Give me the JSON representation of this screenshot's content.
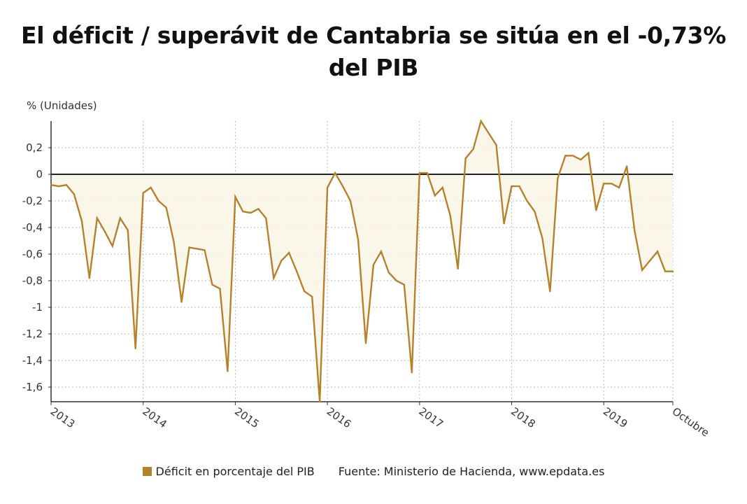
{
  "chart_data": {
    "type": "area",
    "title": "El déficit / superávit de Cantabria se sitúa en el -0,73% del PIB",
    "ylabel": "% (Unidades)",
    "xlabel": "",
    "ylim": [
      -1.71,
      0.4
    ],
    "yticks": [
      0.2,
      0,
      -0.2,
      -0.4,
      -0.6,
      -0.8,
      -1,
      -1.2,
      -1.4,
      -1.6
    ],
    "ytick_labels": [
      "0,2",
      "0",
      "-0,2",
      "-0,4",
      "-0,6",
      "-0,8",
      "-1",
      "-1,2",
      "-1,4",
      "-1,6"
    ],
    "xtick_labels": [
      "2013",
      "2014",
      "2015",
      "2016",
      "2017",
      "2018",
      "2019",
      "Octubre"
    ],
    "x_start": "2013-01",
    "x_end": "2019-10",
    "frequency": "monthly",
    "grid": true,
    "legend_position": "bottom",
    "series": [
      {
        "name": "Déficit en porcentaje del PIB",
        "color": "#b5822c",
        "values": [
          -0.08,
          -0.09,
          -0.08,
          -0.15,
          -0.35,
          -0.78,
          -0.33,
          -0.43,
          -0.54,
          -0.33,
          -0.42,
          -1.31,
          -0.14,
          -0.1,
          -0.2,
          -0.25,
          -0.51,
          -0.96,
          -0.55,
          -0.56,
          -0.57,
          -0.83,
          -0.86,
          -1.48,
          -0.17,
          -0.28,
          -0.29,
          -0.26,
          -0.33,
          -0.78,
          -0.65,
          -0.59,
          -0.73,
          -0.88,
          -0.92,
          -1.71,
          -0.1,
          0.01,
          -0.09,
          -0.2,
          -0.49,
          -1.27,
          -0.68,
          -0.58,
          -0.74,
          -0.8,
          -0.83,
          -1.49,
          0.01,
          0.01,
          -0.16,
          -0.1,
          -0.31,
          -0.71,
          0.12,
          0.19,
          0.4,
          0.31,
          0.22,
          -0.37,
          -0.09,
          -0.09,
          -0.2,
          -0.28,
          -0.48,
          -0.88,
          -0.03,
          0.14,
          0.14,
          0.11,
          0.16,
          -0.27,
          -0.07,
          -0.07,
          -0.1,
          0.06,
          -0.42,
          -0.72,
          -0.65,
          -0.58,
          -0.73,
          -0.73
        ]
      }
    ],
    "source": "Fuente: Ministerio de Hacienda, www.epdata.es"
  }
}
